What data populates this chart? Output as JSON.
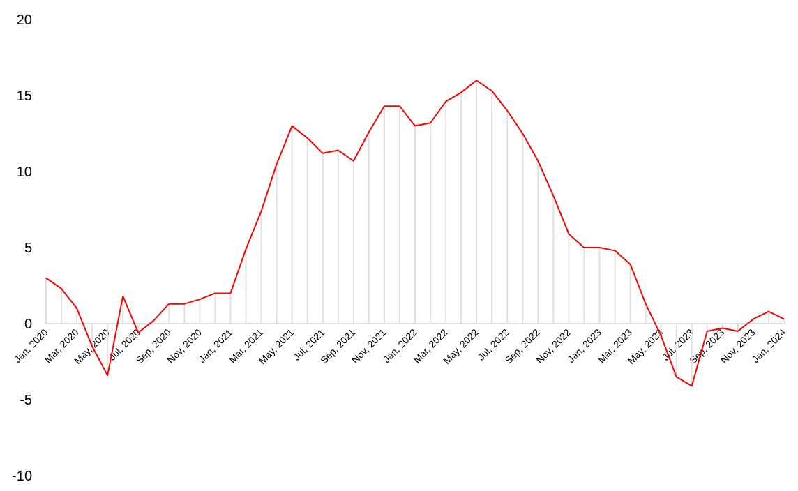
{
  "chart_data": {
    "type": "line",
    "categories": [
      "Jan, 2020",
      null,
      "Mar, 2020",
      null,
      "May, 2020",
      null,
      "Jul, 2020",
      null,
      "Sep, 2020",
      null,
      "Nov, 2020",
      null,
      "Jan, 2021",
      null,
      "Mar, 2021",
      null,
      "May, 2021",
      null,
      "Jul, 2021",
      null,
      "Sep, 2021",
      null,
      "Nov, 2021",
      null,
      "Jan, 2022",
      null,
      "Mar, 2022",
      null,
      "May, 2022",
      null,
      "Jul, 2022",
      null,
      "Sep, 2022",
      null,
      "Nov, 2022",
      null,
      "Jan, 2023",
      null,
      "Mar, 2023",
      null,
      "May, 2023",
      null,
      "Jul, 2023",
      null,
      "Sep, 2023",
      null,
      "Nov, 2023",
      null,
      "Jan, 2024"
    ],
    "series": [
      {
        "type": "bar",
        "color": "#e0e0e0",
        "values": [
          3.0,
          2.3,
          1.0,
          -1.5,
          -3.4,
          1.8,
          -0.6,
          0.2,
          1.3,
          1.3,
          1.6,
          2.0,
          2.0,
          4.9,
          7.4,
          10.5,
          13.0,
          12.2,
          11.2,
          11.4,
          10.7,
          12.6,
          14.3,
          14.3,
          13.0,
          13.2,
          14.6,
          15.2,
          16.0,
          15.3,
          14.0,
          12.5,
          10.7,
          8.4,
          5.9,
          5.0,
          5.0,
          4.8,
          3.9,
          1.3,
          -0.8,
          -3.5,
          -4.1,
          -0.5,
          -0.3,
          -0.5,
          0.3,
          0.8,
          0.3
        ]
      },
      {
        "color": "#ff0000",
        "values": [
          3.0,
          2.3,
          1.0,
          -1.5,
          -3.4,
          1.8,
          -0.6,
          0.2,
          1.3,
          1.3,
          1.6,
          2.0,
          2.0,
          4.9,
          7.4,
          10.5,
          13.0,
          12.2,
          11.2,
          11.4,
          10.7,
          12.6,
          14.3,
          14.3,
          13.0,
          13.2,
          14.6,
          15.2,
          16.0,
          15.3,
          14.0,
          12.5,
          10.7,
          8.4,
          5.9,
          5.0,
          5.0,
          4.8,
          3.9,
          1.3,
          -0.8,
          -3.5,
          -4.1,
          -0.5,
          -0.3,
          -0.5,
          0.3,
          0.8,
          0.3
        ]
      }
    ],
    "ylim": [
      -10,
      20
    ],
    "yticks": [
      -10,
      -5,
      0,
      5,
      10,
      15,
      20
    ],
    "grid": false,
    "marker": "none",
    "line_style": "solid"
  }
}
